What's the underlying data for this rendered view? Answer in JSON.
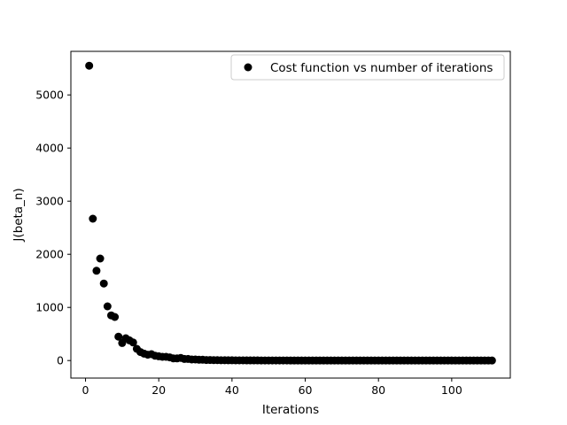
{
  "chart_data": {
    "type": "scatter",
    "title": "",
    "xlabel": "Iterations",
    "ylabel": "J(beta_n)",
    "xlim": [
      -4,
      116
    ],
    "ylim": [
      -330,
      5820
    ],
    "xticks": [
      0,
      20,
      40,
      60,
      80,
      100
    ],
    "yticks": [
      0,
      1000,
      2000,
      3000,
      4000,
      5000
    ],
    "grid": false,
    "legend_position": "top-right",
    "marker_color": "#000000",
    "series": [
      {
        "name": "Cost function vs number of iterations",
        "x": [
          1,
          2,
          3,
          4,
          5,
          6,
          7,
          8,
          9,
          10,
          11,
          12,
          13,
          14,
          15,
          16,
          17,
          18,
          19,
          20,
          21,
          22,
          23,
          24,
          25,
          26,
          27,
          28,
          29,
          30,
          31,
          32,
          33,
          34,
          35,
          36,
          37,
          38,
          39,
          40,
          41,
          42,
          43,
          44,
          45,
          46,
          47,
          48,
          49,
          50,
          51,
          52,
          53,
          54,
          55,
          56,
          57,
          58,
          59,
          60,
          61,
          62,
          63,
          64,
          65,
          66,
          67,
          68,
          69,
          70,
          71,
          72,
          73,
          74,
          75,
          76,
          77,
          78,
          79,
          80,
          81,
          82,
          83,
          84,
          85,
          86,
          87,
          88,
          89,
          90,
          91,
          92,
          93,
          94,
          95,
          96,
          97,
          98,
          99,
          100,
          101,
          102,
          103,
          104,
          105,
          106,
          107,
          108,
          109,
          110,
          111
        ],
        "y": [
          5550,
          2670,
          1690,
          1920,
          1450,
          1020,
          850,
          820,
          450,
          330,
          420,
          380,
          340,
          220,
          160,
          130,
          110,
          120,
          90,
          80,
          70,
          70,
          60,
          40,
          40,
          50,
          30,
          30,
          20,
          20,
          15,
          15,
          10,
          10,
          8,
          8,
          6,
          6,
          5,
          5,
          4,
          4,
          4,
          3,
          3,
          3,
          3,
          2,
          2,
          2,
          2,
          2,
          2,
          2,
          2,
          1,
          1,
          1,
          1,
          1,
          1,
          1,
          1,
          1,
          1,
          1,
          1,
          1,
          1,
          1,
          1,
          1,
          1,
          1,
          1,
          1,
          1,
          1,
          1,
          1,
          1,
          1,
          1,
          1,
          1,
          1,
          1,
          1,
          1,
          1,
          1,
          1,
          1,
          1,
          1,
          1,
          1,
          1,
          1,
          1,
          1,
          1,
          1,
          1,
          1,
          1,
          1,
          1,
          1,
          1,
          1
        ]
      }
    ]
  }
}
